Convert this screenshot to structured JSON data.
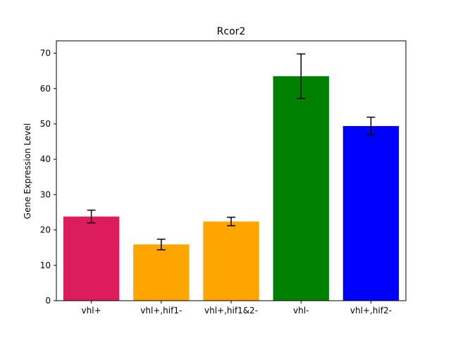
{
  "chart_data": {
    "type": "bar",
    "title": "Rcor2",
    "xlabel": "",
    "ylabel": "Gene Expression Level",
    "ylim": [
      0,
      73.5
    ],
    "yticks": [
      0,
      10,
      20,
      30,
      40,
      50,
      60,
      70
    ],
    "categories": [
      "vhl+",
      "vhl+,hif1-",
      "vhl+,hif1&2-",
      "vhl-",
      "vhl+,hif2-"
    ],
    "values": [
      23.8,
      15.9,
      22.4,
      63.5,
      49.4
    ],
    "errors": [
      1.8,
      1.5,
      1.2,
      6.3,
      2.5
    ],
    "colors": [
      "#dc1c5c",
      "#ffa500",
      "#ffa500",
      "#008000",
      "#0000ff"
    ],
    "grid": false,
    "error_bar_color": "#000000"
  }
}
